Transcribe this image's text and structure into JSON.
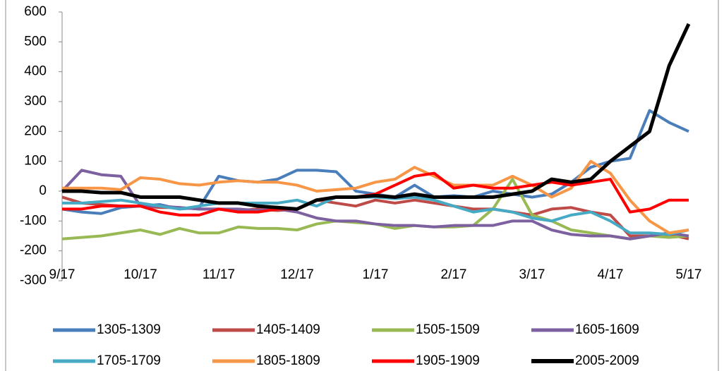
{
  "chart_data": {
    "type": "line",
    "categories": [
      "9/17",
      null,
      null,
      null,
      "10/17",
      null,
      null,
      null,
      "11/17",
      null,
      null,
      null,
      "12/17",
      null,
      null,
      null,
      "1/17",
      null,
      null,
      null,
      "2/17",
      null,
      null,
      null,
      "3/17",
      null,
      null,
      null,
      "4/17",
      null,
      null,
      null,
      "5/17"
    ],
    "ylim": [
      -300,
      600
    ],
    "yticks": [
      -300,
      -200,
      -100,
      0,
      100,
      200,
      300,
      400,
      500,
      600
    ],
    "series": [
      {
        "name": "1305-1309",
        "color": "#4a7ebb",
        "values": [
          -60,
          -70,
          -75,
          -55,
          -50,
          -45,
          -60,
          -55,
          50,
          35,
          30,
          40,
          70,
          70,
          65,
          0,
          -10,
          -20,
          20,
          -20,
          -15,
          -20,
          0,
          -10,
          -20,
          -10,
          30,
          80,
          100,
          110,
          270,
          230,
          200
        ]
      },
      {
        "name": "1405-1409",
        "color": "#be4b48",
        "values": [
          -20,
          -40,
          -45,
          -50,
          -50,
          -55,
          -55,
          -60,
          -60,
          -65,
          -60,
          -65,
          -60,
          -30,
          -40,
          -50,
          -30,
          -40,
          -30,
          -40,
          -50,
          -60,
          -60,
          -70,
          -80,
          -60,
          -55,
          -70,
          -80,
          -150,
          -150,
          -145,
          -160
        ]
      },
      {
        "name": "1505-1509",
        "color": "#98b954",
        "values": [
          -160,
          -155,
          -150,
          -140,
          -130,
          -145,
          -125,
          -140,
          -140,
          -120,
          -125,
          -125,
          -130,
          -110,
          -100,
          -105,
          -110,
          -125,
          -115,
          -120,
          -120,
          -115,
          -60,
          40,
          -80,
          -100,
          -130,
          -140,
          -150,
          -160,
          -150,
          -155,
          -150
        ]
      },
      {
        "name": "1605-1609",
        "color": "#7d60a0",
        "values": [
          0,
          70,
          55,
          50,
          -50,
          -50,
          -55,
          -60,
          -60,
          -60,
          -65,
          -60,
          -70,
          -90,
          -100,
          -100,
          -110,
          -115,
          -115,
          -120,
          -115,
          -115,
          -115,
          -100,
          -100,
          -130,
          -145,
          -150,
          -150,
          -160,
          -150,
          -140,
          -150
        ]
      },
      {
        "name": "1705-1709",
        "color": "#46aac5",
        "values": [
          -40,
          -40,
          -35,
          -30,
          -40,
          -50,
          -60,
          -50,
          -40,
          -40,
          -40,
          -40,
          -30,
          -50,
          -20,
          -20,
          -20,
          -25,
          -20,
          -30,
          -50,
          -70,
          -60,
          -70,
          -90,
          -100,
          -80,
          -70,
          -100,
          -140,
          -140,
          -145,
          -130
        ]
      },
      {
        "name": "1805-1809",
        "color": "#f79646",
        "values": [
          10,
          10,
          10,
          5,
          45,
          40,
          25,
          20,
          30,
          35,
          30,
          30,
          20,
          0,
          5,
          10,
          30,
          40,
          80,
          50,
          20,
          20,
          20,
          50,
          20,
          -20,
          10,
          100,
          60,
          -30,
          -100,
          -140,
          -130
        ]
      },
      {
        "name": "1905-1909",
        "color": "#ff0000",
        "values": [
          -60,
          -60,
          -50,
          -50,
          -50,
          -70,
          -80,
          -80,
          -60,
          -70,
          -70,
          -60,
          -60,
          -30,
          -20,
          -20,
          -10,
          20,
          50,
          60,
          10,
          20,
          10,
          10,
          20,
          30,
          20,
          30,
          40,
          -70,
          -60,
          -30,
          -30
        ]
      },
      {
        "name": "2005-2009",
        "color": "#000000",
        "values": [
          0,
          0,
          -5,
          -5,
          -20,
          -20,
          -20,
          -30,
          -40,
          -40,
          -50,
          -55,
          -60,
          -30,
          -20,
          -20,
          -15,
          -20,
          -10,
          -20,
          -20,
          -20,
          -20,
          -10,
          0,
          40,
          30,
          40,
          100,
          150,
          200,
          420,
          560
        ]
      }
    ]
  }
}
